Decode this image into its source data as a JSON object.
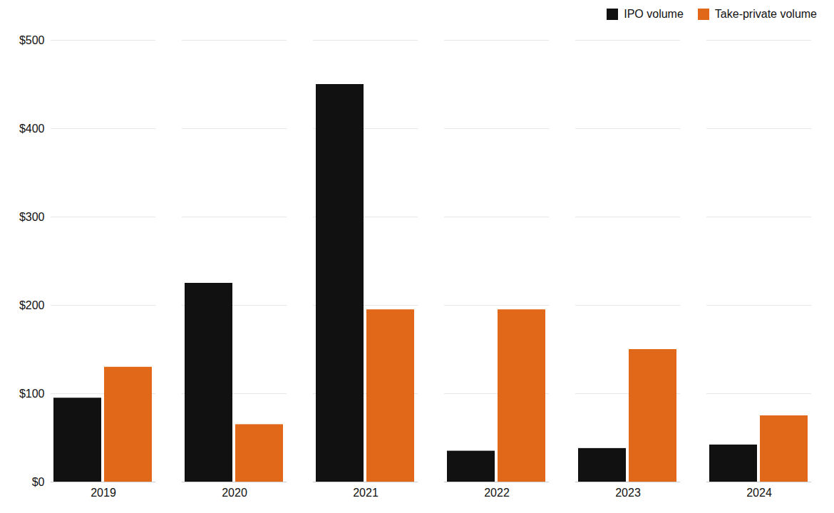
{
  "chart_data": {
    "type": "bar",
    "categories": [
      "2019",
      "2020",
      "2021",
      "2022",
      "2023",
      "2024"
    ],
    "series": [
      {
        "name": "IPO volume",
        "color": "#111111",
        "values": [
          95,
          225,
          450,
          35,
          38,
          42
        ]
      },
      {
        "name": "Take-private volume",
        "color": "#e06818",
        "values": [
          130,
          65,
          195,
          195,
          150,
          75
        ]
      }
    ],
    "ylim": [
      0,
      500
    ],
    "yticks": [
      {
        "value": 0,
        "label": "$0"
      },
      {
        "value": 100,
        "label": "$100"
      },
      {
        "value": 200,
        "label": "$200"
      },
      {
        "value": 300,
        "label": "$300"
      },
      {
        "value": 400,
        "label": "$400"
      },
      {
        "value": 500,
        "label": "$500"
      }
    ],
    "grid": true,
    "legend": "upper right"
  }
}
